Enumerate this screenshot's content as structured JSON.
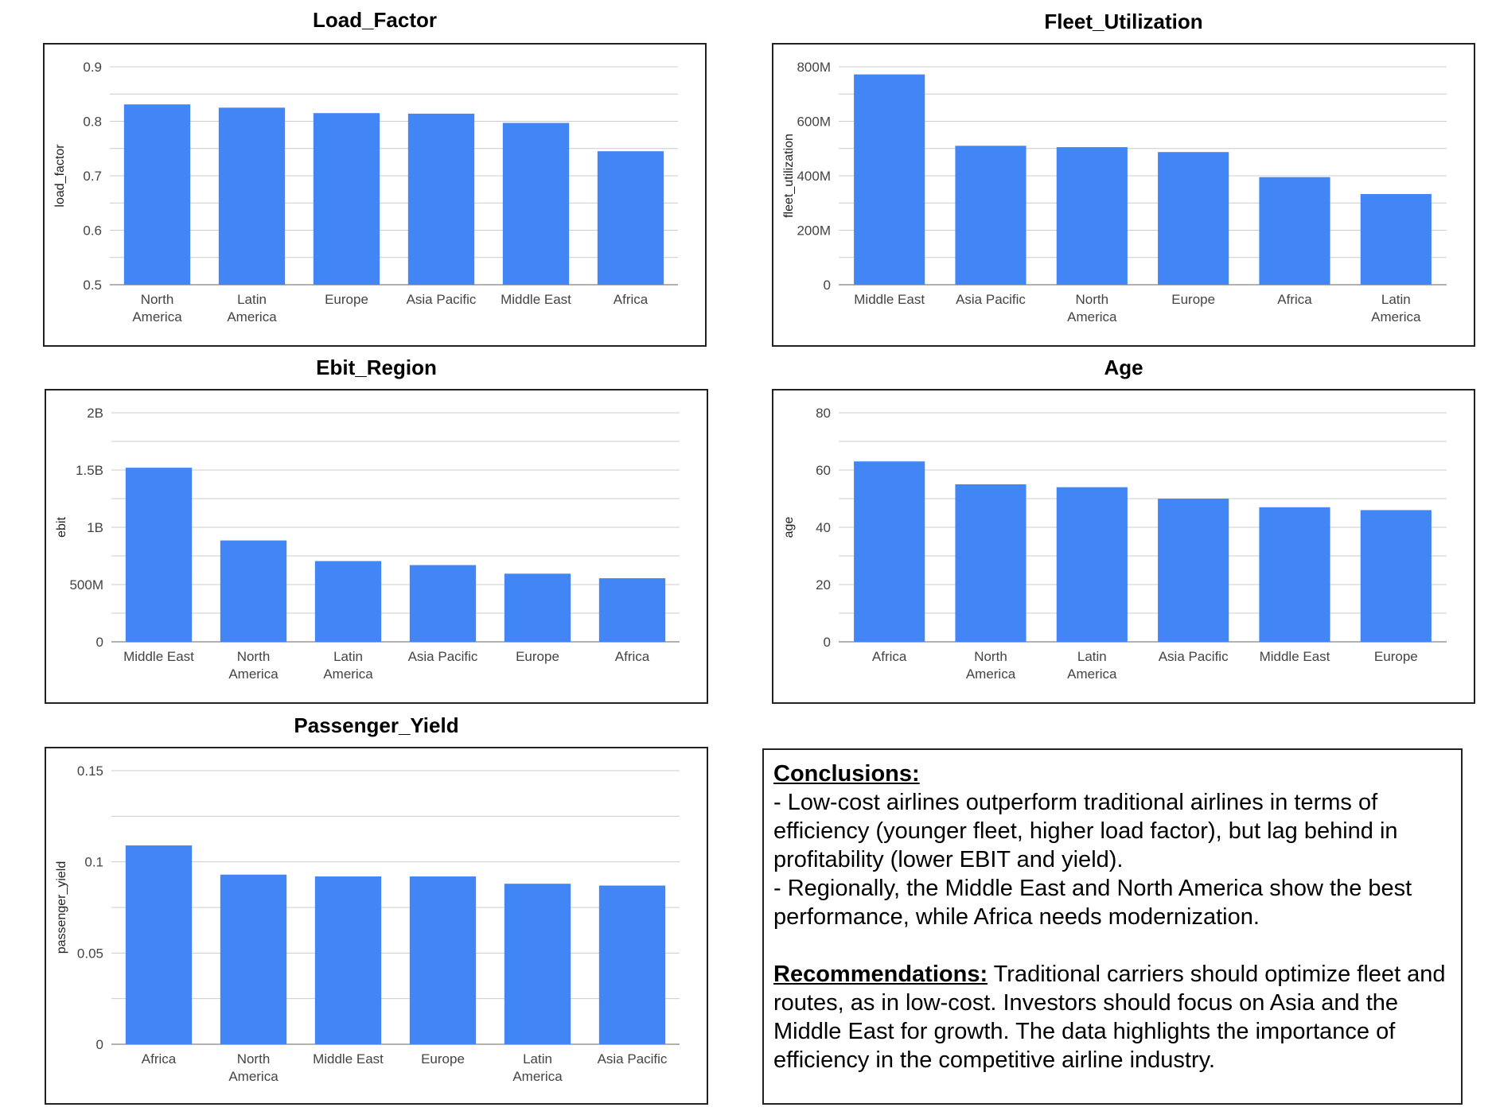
{
  "colors": {
    "bar": "#4285f4",
    "grid": "#cccccc",
    "axis_text": "#444444"
  },
  "chart_data": [
    {
      "type": "bar",
      "title": "Load_Factor",
      "ylabel": "load_factor",
      "categories": [
        "North America",
        "Latin America",
        "Europe",
        "Asia Pacific",
        "Middle East",
        "Africa"
      ],
      "values": [
        0.831,
        0.825,
        0.815,
        0.814,
        0.797,
        0.745
      ],
      "ylim": [
        0.5,
        0.9
      ],
      "yticks": [
        0.5,
        0.6,
        0.7,
        0.8,
        0.9
      ],
      "ytick_labels": [
        "0.5",
        "0.6",
        "0.7",
        "0.8",
        "0.9"
      ],
      "grid": true
    },
    {
      "type": "bar",
      "title": "Fleet_Utilization",
      "ylabel": "fleet_utilization",
      "categories": [
        "Middle East",
        "Asia Pacific",
        "North America",
        "Europe",
        "Africa",
        "Latin America"
      ],
      "values": [
        772000000,
        510000000,
        505000000,
        487000000,
        395000000,
        333000000
      ],
      "ylim": [
        0,
        800000000
      ],
      "yticks": [
        0,
        200000000,
        400000000,
        600000000,
        800000000
      ],
      "ytick_labels": [
        "0",
        "200M",
        "400M",
        "600M",
        "800M"
      ],
      "grid": true
    },
    {
      "type": "bar",
      "title": "Ebit_Region",
      "ylabel": "ebit",
      "categories": [
        "Middle East",
        "North America",
        "Latin America",
        "Asia Pacific",
        "Europe",
        "Africa"
      ],
      "values": [
        1520000000,
        885000000,
        705000000,
        670000000,
        595000000,
        555000000
      ],
      "ylim": [
        0,
        2000000000
      ],
      "yticks": [
        0,
        500000000,
        1000000000,
        1500000000,
        2000000000
      ],
      "ytick_labels": [
        "0",
        "500M",
        "1B",
        "1.5B",
        "2B"
      ],
      "grid": true
    },
    {
      "type": "bar",
      "title": "Age",
      "ylabel": "age",
      "categories": [
        "Africa",
        "North America",
        "Latin America",
        "Asia Pacific",
        "Middle East",
        "Europe"
      ],
      "values": [
        63,
        55,
        54,
        50,
        47,
        46
      ],
      "ylim": [
        0,
        80
      ],
      "yticks": [
        0,
        20,
        40,
        60,
        80
      ],
      "ytick_labels": [
        "0",
        "20",
        "40",
        "60",
        "80"
      ],
      "grid": true
    },
    {
      "type": "bar",
      "title": "Passenger_Yield",
      "ylabel": "passenger_yield",
      "categories": [
        "Africa",
        "North America",
        "Middle East",
        "Europe",
        "Latin America",
        "Asia Pacific"
      ],
      "values": [
        0.109,
        0.093,
        0.092,
        0.092,
        0.088,
        0.087
      ],
      "ylim": [
        0,
        0.15
      ],
      "yticks": [
        0,
        0.05,
        0.1,
        0.15
      ],
      "ytick_labels": [
        "0",
        "0.05",
        "0.1",
        "0.15"
      ],
      "grid": true
    }
  ],
  "conclusions": {
    "heading": "Conclusions: ",
    "line1": "- Low-cost airlines outperform traditional airlines in terms of efficiency (younger fleet, higher load factor), but lag behind in profitability (lower EBIT and yield).",
    "line2": " - Regionally, the Middle East and North America show the best performance, while Africa needs modernization.",
    "rec_heading": "Recommendations:",
    "rec_text": " Traditional carriers should optimize fleet and routes, as in low-cost. Investors should focus on Asia and the Middle East for growth. The data highlights the importance of efficiency in the competitive airline industry."
  }
}
